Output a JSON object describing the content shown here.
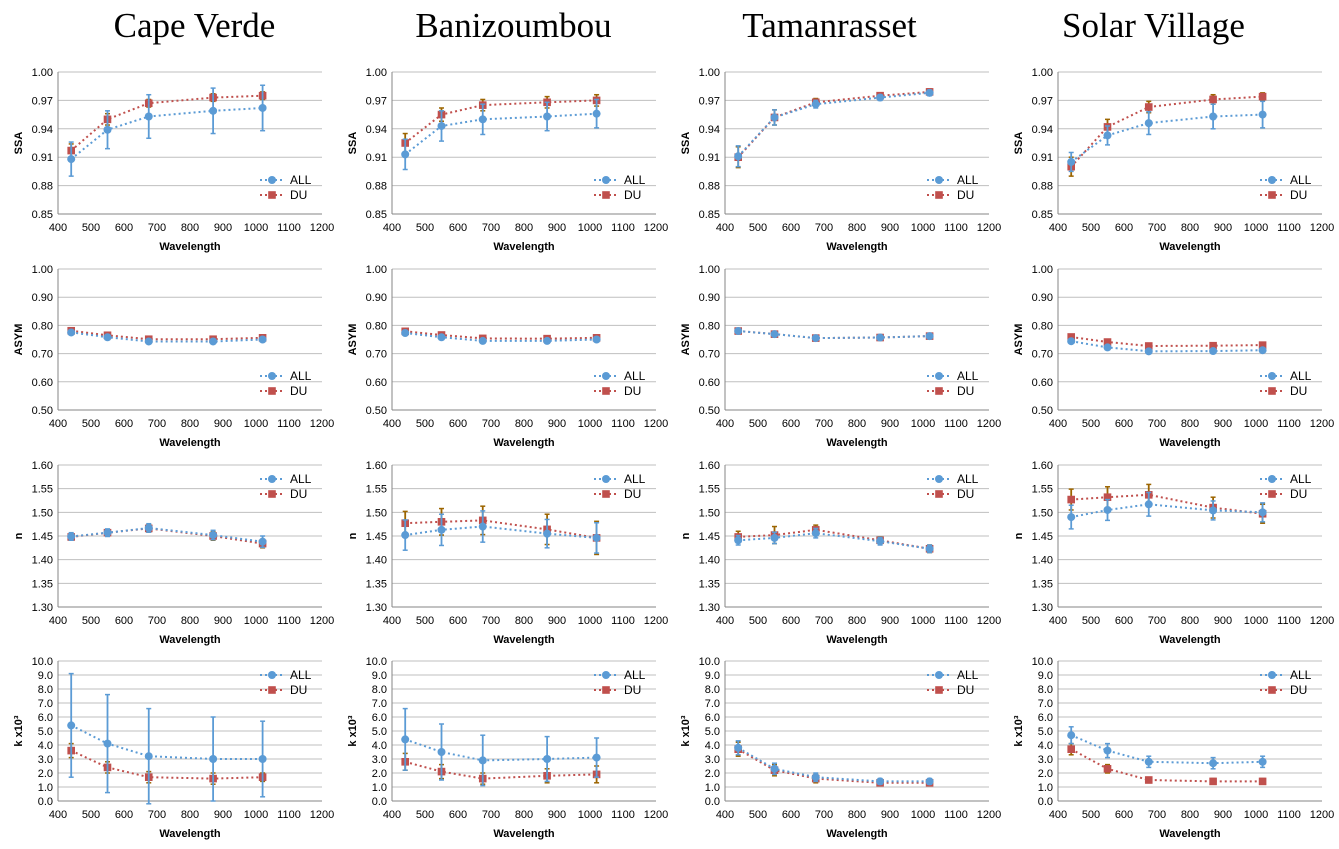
{
  "site_titles": [
    "Cape Verde",
    "Banizoumbou",
    "Tamanrasset",
    "Solar Village"
  ],
  "series_names": [
    "ALL",
    "DU"
  ],
  "colors": {
    "ALL": "#5b9bd5",
    "DU": "#c0504d",
    "DU_errorbar": "#9c6500",
    "grid": "#bfbfbf"
  },
  "x_axis": {
    "label": "Wavelength",
    "range": [
      400,
      1200
    ],
    "ticks": [
      400,
      500,
      600,
      700,
      800,
      900,
      1000,
      1100,
      1200
    ]
  },
  "rows": [
    {
      "param": "SSA",
      "ylabel": "SSA",
      "ylim": [
        0.85,
        1.0
      ],
      "yticks": [
        0.85,
        0.88,
        0.91,
        0.94,
        0.97,
        1.0
      ],
      "ytick_labels": [
        "0.85",
        "0.88",
        "0.91",
        "0.94",
        "0.97",
        "1.00"
      ]
    },
    {
      "param": "ASYM",
      "ylabel": "ASYM",
      "ylim": [
        0.5,
        1.0
      ],
      "yticks": [
        0.5,
        0.6,
        0.7,
        0.8,
        0.9,
        1.0
      ],
      "ytick_labels": [
        "0.50",
        "0.60",
        "0.70",
        "0.80",
        "0.90",
        "1.00"
      ]
    },
    {
      "param": "n",
      "ylabel": "n",
      "ylim": [
        1.3,
        1.6
      ],
      "yticks": [
        1.3,
        1.35,
        1.4,
        1.45,
        1.5,
        1.55,
        1.6
      ],
      "ytick_labels": [
        "1.30",
        "1.35",
        "1.40",
        "1.45",
        "1.50",
        "1.55",
        "1.60"
      ]
    },
    {
      "param": "k",
      "ylabel": "k x10³",
      "ylim": [
        0,
        10
      ],
      "yticks": [
        0,
        1,
        2,
        3,
        4,
        5,
        6,
        7,
        8,
        9,
        10
      ],
      "ytick_labels": [
        "0.0",
        "1.0",
        "2.0",
        "3.0",
        "4.0",
        "5.0",
        "6.0",
        "7.0",
        "8.0",
        "9.0",
        "10.0"
      ]
    }
  ],
  "chart_data": [
    {
      "type": "line",
      "site": "Cape Verde",
      "param": "SSA",
      "ylabel": "SSA",
      "xlabel": "Wavelength",
      "ylim": [
        0.85,
        1.0
      ],
      "x": [
        440,
        550,
        675,
        870,
        1020
      ],
      "series": [
        {
          "name": "ALL",
          "values": [
            0.908,
            0.939,
            0.953,
            0.959,
            0.962
          ],
          "err": [
            0.018,
            0.02,
            0.023,
            0.024,
            0.024
          ]
        },
        {
          "name": "DU",
          "values": [
            0.917,
            0.95,
            0.967,
            0.973,
            0.975
          ],
          "err": [
            0.007,
            0.006,
            0.004,
            0.004,
            0.004
          ]
        }
      ]
    },
    {
      "type": "line",
      "site": "Banizoumbou",
      "param": "SSA",
      "ylabel": "SSA",
      "xlabel": "Wavelength",
      "ylim": [
        0.85,
        1.0
      ],
      "x": [
        440,
        550,
        675,
        870,
        1020
      ],
      "series": [
        {
          "name": "ALL",
          "values": [
            0.913,
            0.943,
            0.95,
            0.953,
            0.956
          ],
          "err": [
            0.016,
            0.016,
            0.016,
            0.015,
            0.015
          ]
        },
        {
          "name": "DU",
          "values": [
            0.925,
            0.955,
            0.965,
            0.968,
            0.97
          ],
          "err": [
            0.01,
            0.007,
            0.006,
            0.006,
            0.006
          ]
        }
      ]
    },
    {
      "type": "line",
      "site": "Tamanrasset",
      "param": "SSA",
      "ylabel": "SSA",
      "xlabel": "Wavelength",
      "ylim": [
        0.85,
        1.0
      ],
      "x": [
        440,
        550,
        675,
        870,
        1020
      ],
      "series": [
        {
          "name": "ALL",
          "values": [
            0.911,
            0.952,
            0.966,
            0.973,
            0.978
          ],
          "err": [
            0.011,
            0.008,
            0.004,
            0.003,
            0.003
          ]
        },
        {
          "name": "DU",
          "values": [
            0.91,
            0.952,
            0.968,
            0.975,
            0.979
          ],
          "err": [
            0.011,
            0.008,
            0.004,
            0.003,
            0.003
          ]
        }
      ]
    },
    {
      "type": "line",
      "site": "Solar Village",
      "param": "SSA",
      "ylabel": "SSA",
      "xlabel": "Wavelength",
      "ylim": [
        0.85,
        1.0
      ],
      "x": [
        440,
        550,
        675,
        870,
        1020
      ],
      "series": [
        {
          "name": "ALL",
          "values": [
            0.905,
            0.933,
            0.946,
            0.953,
            0.955
          ],
          "err": [
            0.01,
            0.01,
            0.012,
            0.013,
            0.014
          ]
        },
        {
          "name": "DU",
          "values": [
            0.9,
            0.942,
            0.963,
            0.971,
            0.974
          ],
          "err": [
            0.01,
            0.008,
            0.006,
            0.005,
            0.004
          ]
        }
      ]
    },
    {
      "type": "line",
      "site": "Cape Verde",
      "param": "ASYM",
      "ylabel": "ASYM",
      "xlabel": "Wavelength",
      "ylim": [
        0.5,
        1.0
      ],
      "x": [
        440,
        550,
        675,
        870,
        1020
      ],
      "series": [
        {
          "name": "ALL",
          "values": [
            0.775,
            0.758,
            0.743,
            0.743,
            0.75
          ],
          "err": [
            0.006,
            0.006,
            0.006,
            0.006,
            0.006
          ]
        },
        {
          "name": "DU",
          "values": [
            0.781,
            0.765,
            0.751,
            0.751,
            0.756
          ],
          "err": [
            0.005,
            0.005,
            0.005,
            0.005,
            0.005
          ]
        }
      ]
    },
    {
      "type": "line",
      "site": "Banizoumbou",
      "param": "ASYM",
      "ylabel": "ASYM",
      "xlabel": "Wavelength",
      "ylim": [
        0.5,
        1.0
      ],
      "x": [
        440,
        550,
        675,
        870,
        1020
      ],
      "series": [
        {
          "name": "ALL",
          "values": [
            0.773,
            0.758,
            0.745,
            0.745,
            0.75
          ],
          "err": [
            0.006,
            0.006,
            0.006,
            0.006,
            0.006
          ]
        },
        {
          "name": "DU",
          "values": [
            0.779,
            0.766,
            0.754,
            0.753,
            0.756
          ],
          "err": [
            0.006,
            0.006,
            0.006,
            0.006,
            0.006
          ]
        }
      ]
    },
    {
      "type": "line",
      "site": "Tamanrasset",
      "param": "ASYM",
      "ylabel": "ASYM",
      "xlabel": "Wavelength",
      "ylim": [
        0.5,
        1.0
      ],
      "x": [
        440,
        550,
        675,
        870,
        1020
      ],
      "series": [
        {
          "name": "ALL",
          "values": [
            0.78,
            0.769,
            0.755,
            0.757,
            0.762
          ],
          "err": [
            0.003,
            0.003,
            0.003,
            0.003,
            0.003
          ]
        },
        {
          "name": "DU",
          "values": [
            0.78,
            0.769,
            0.755,
            0.757,
            0.762
          ],
          "err": [
            0.003,
            0.003,
            0.003,
            0.003,
            0.003
          ]
        }
      ]
    },
    {
      "type": "line",
      "site": "Solar Village",
      "param": "ASYM",
      "ylabel": "ASYM",
      "xlabel": "Wavelength",
      "ylim": [
        0.5,
        1.0
      ],
      "x": [
        440,
        550,
        675,
        870,
        1020
      ],
      "series": [
        {
          "name": "ALL",
          "values": [
            0.744,
            0.722,
            0.708,
            0.709,
            0.712
          ],
          "err": [
            0.006,
            0.006,
            0.006,
            0.006,
            0.006
          ]
        },
        {
          "name": "DU",
          "values": [
            0.759,
            0.741,
            0.727,
            0.728,
            0.73
          ],
          "err": [
            0.005,
            0.005,
            0.005,
            0.005,
            0.005
          ]
        }
      ]
    },
    {
      "type": "line",
      "site": "Cape Verde",
      "param": "n",
      "ylabel": "n",
      "xlabel": "Wavelength",
      "ylim": [
        1.3,
        1.6
      ],
      "x": [
        440,
        550,
        675,
        870,
        1020
      ],
      "series": [
        {
          "name": "ALL",
          "values": [
            1.449,
            1.457,
            1.467,
            1.452,
            1.438
          ],
          "err": [
            0.008,
            0.008,
            0.009,
            0.01,
            0.012
          ]
        },
        {
          "name": "DU",
          "values": [
            1.448,
            1.457,
            1.466,
            1.45,
            1.434
          ],
          "err": [
            0.007,
            0.007,
            0.008,
            0.009,
            0.009
          ]
        }
      ]
    },
    {
      "type": "line",
      "site": "Banizoumbou",
      "param": "n",
      "ylabel": "n",
      "xlabel": "Wavelength",
      "ylim": [
        1.3,
        1.6
      ],
      "x": [
        440,
        550,
        675,
        870,
        1020
      ],
      "series": [
        {
          "name": "ALL",
          "values": [
            1.452,
            1.463,
            1.47,
            1.455,
            1.446
          ],
          "err": [
            0.032,
            0.033,
            0.033,
            0.03,
            0.032
          ]
        },
        {
          "name": "DU",
          "values": [
            1.477,
            1.48,
            1.483,
            1.464,
            1.446
          ],
          "err": [
            0.025,
            0.028,
            0.03,
            0.032,
            0.035
          ]
        }
      ]
    },
    {
      "type": "line",
      "site": "Tamanrasset",
      "param": "n",
      "ylabel": "n",
      "xlabel": "Wavelength",
      "ylim": [
        1.3,
        1.6
      ],
      "x": [
        440,
        550,
        675,
        870,
        1020
      ],
      "series": [
        {
          "name": "ALL",
          "values": [
            1.441,
            1.446,
            1.456,
            1.439,
            1.423
          ],
          "err": [
            0.01,
            0.012,
            0.01,
            0.008,
            0.008
          ]
        },
        {
          "name": "DU",
          "values": [
            1.448,
            1.452,
            1.463,
            1.441,
            1.423
          ],
          "err": [
            0.012,
            0.018,
            0.01,
            0.007,
            0.008
          ]
        }
      ]
    },
    {
      "type": "line",
      "site": "Solar Village",
      "param": "n",
      "ylabel": "n",
      "xlabel": "Wavelength",
      "ylim": [
        1.3,
        1.6
      ],
      "x": [
        440,
        550,
        675,
        870,
        1020
      ],
      "series": [
        {
          "name": "ALL",
          "values": [
            1.49,
            1.505,
            1.517,
            1.504,
            1.5
          ],
          "err": [
            0.025,
            0.022,
            0.025,
            0.02,
            0.02
          ]
        },
        {
          "name": "DU",
          "values": [
            1.527,
            1.532,
            1.537,
            1.51,
            1.497
          ],
          "err": [
            0.022,
            0.022,
            0.022,
            0.022,
            0.02
          ]
        }
      ]
    },
    {
      "type": "line",
      "site": "Cape Verde",
      "param": "k",
      "ylabel": "k x10³",
      "xlabel": "Wavelength",
      "ylim": [
        0,
        10
      ],
      "x": [
        440,
        550,
        675,
        870,
        1020
      ],
      "series": [
        {
          "name": "ALL",
          "values": [
            5.4,
            4.1,
            3.2,
            3.0,
            3.0
          ],
          "err": [
            3.7,
            3.5,
            3.4,
            3.0,
            2.7
          ]
        },
        {
          "name": "DU",
          "values": [
            3.6,
            2.4,
            1.7,
            1.6,
            1.7
          ],
          "err": [
            0.5,
            0.4,
            0.4,
            0.4,
            0.3
          ]
        }
      ]
    },
    {
      "type": "line",
      "site": "Banizoumbou",
      "param": "k",
      "ylabel": "k x10³",
      "xlabel": "Wavelength",
      "ylim": [
        0,
        10
      ],
      "x": [
        440,
        550,
        675,
        870,
        1020
      ],
      "series": [
        {
          "name": "ALL",
          "values": [
            4.4,
            3.5,
            2.9,
            3.0,
            3.1
          ],
          "err": [
            2.2,
            2.0,
            1.8,
            1.6,
            1.4
          ]
        },
        {
          "name": "DU",
          "values": [
            2.8,
            2.1,
            1.6,
            1.8,
            1.9
          ],
          "err": [
            0.6,
            0.5,
            0.4,
            0.5,
            0.6
          ]
        }
      ]
    },
    {
      "type": "line",
      "site": "Tamanrasset",
      "param": "k",
      "ylabel": "k x10³",
      "xlabel": "Wavelength",
      "ylim": [
        0,
        10
      ],
      "x": [
        440,
        550,
        675,
        870,
        1020
      ],
      "series": [
        {
          "name": "ALL",
          "values": [
            3.8,
            2.3,
            1.7,
            1.4,
            1.4
          ],
          "err": [
            0.5,
            0.4,
            0.3,
            0.2,
            0.2
          ]
        },
        {
          "name": "DU",
          "values": [
            3.7,
            2.2,
            1.6,
            1.3,
            1.3
          ],
          "err": [
            0.5,
            0.4,
            0.3,
            0.2,
            0.2
          ]
        }
      ]
    },
    {
      "type": "line",
      "site": "Solar Village",
      "param": "k",
      "ylabel": "k x10³",
      "xlabel": "Wavelength",
      "ylim": [
        0,
        10
      ],
      "x": [
        440,
        550,
        675,
        870,
        1020
      ],
      "series": [
        {
          "name": "ALL",
          "values": [
            4.7,
            3.6,
            2.8,
            2.7,
            2.8
          ],
          "err": [
            0.6,
            0.5,
            0.4,
            0.4,
            0.4
          ]
        },
        {
          "name": "DU",
          "values": [
            3.7,
            2.3,
            1.5,
            1.4,
            1.4
          ],
          "err": [
            0.4,
            0.3,
            0.2,
            0.2,
            0.2
          ]
        }
      ]
    }
  ]
}
